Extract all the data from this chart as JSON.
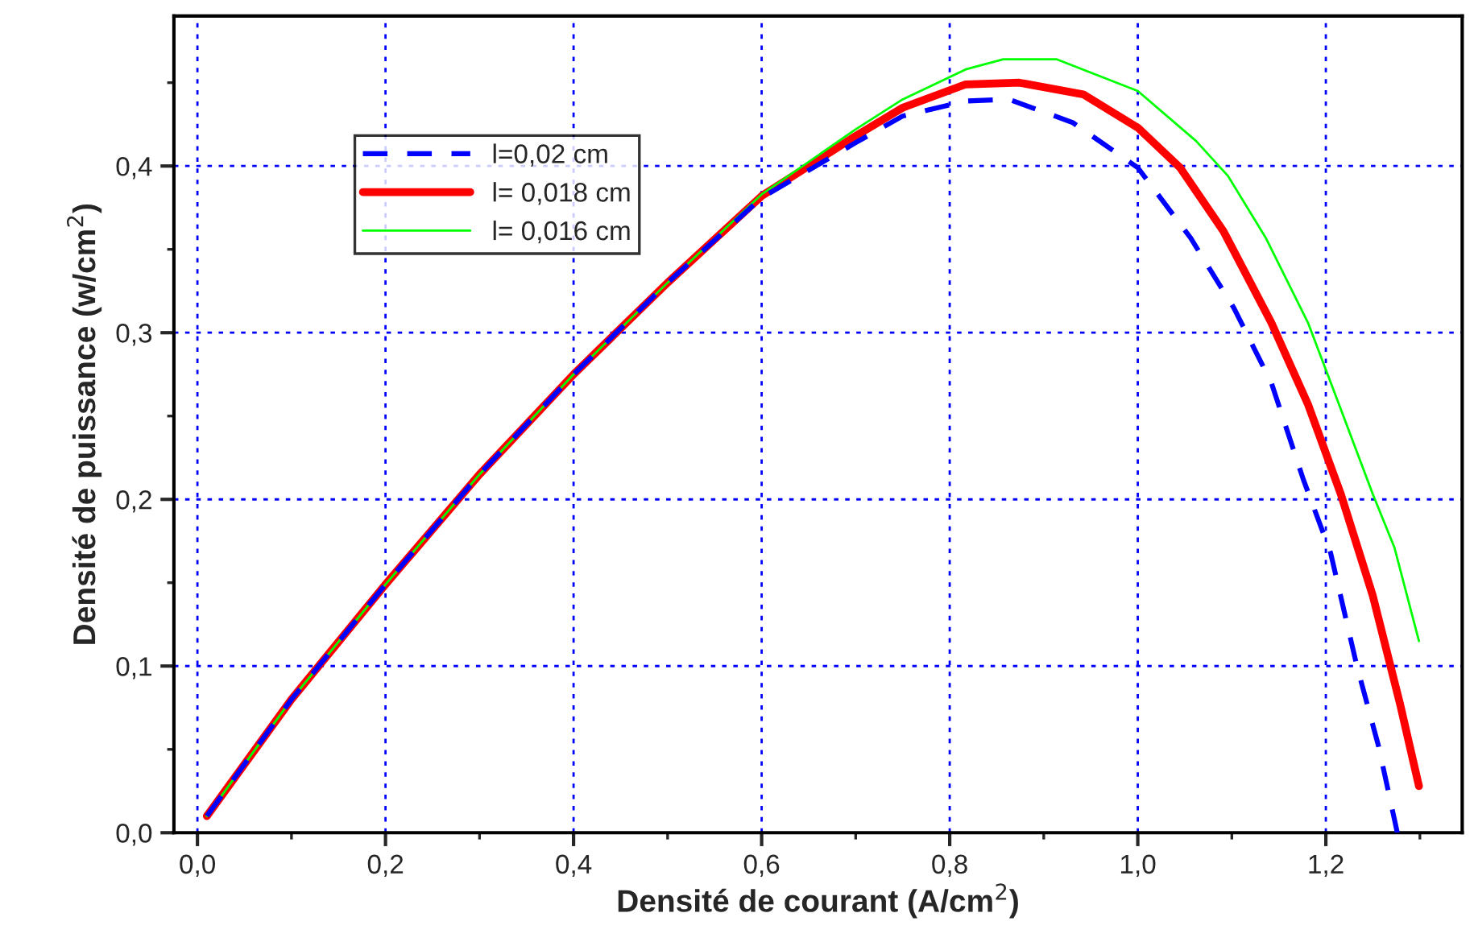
{
  "chart_data": {
    "type": "line",
    "xlabel": "Densité de courant (A/cm$^{2}$)",
    "ylabel": "Densité de puissance (w/cm$^{2}$)",
    "xlim": [
      -0.025,
      1.345
    ],
    "ylim": [
      0,
      0.49
    ],
    "xticks": [
      {
        "value": 0.0,
        "label": "0,0"
      },
      {
        "value": 0.1,
        "label": null
      },
      {
        "value": 0.2,
        "label": "0,2"
      },
      {
        "value": 0.3,
        "label": null
      },
      {
        "value": 0.4,
        "label": "0,4"
      },
      {
        "value": 0.5,
        "label": null
      },
      {
        "value": 0.6,
        "label": "0,6"
      },
      {
        "value": 0.7,
        "label": null
      },
      {
        "value": 0.8,
        "label": "0,8"
      },
      {
        "value": 0.9,
        "label": null
      },
      {
        "value": 1.0,
        "label": "1,0"
      },
      {
        "value": 1.1,
        "label": null
      },
      {
        "value": 1.2,
        "label": "1,2"
      },
      {
        "value": 1.3,
        "label": null
      }
    ],
    "yticks": [
      {
        "value": 0.0,
        "label": "0,0"
      },
      {
        "value": 0.05,
        "label": null
      },
      {
        "value": 0.1,
        "label": "0,1"
      },
      {
        "value": 0.15,
        "label": null
      },
      {
        "value": 0.2,
        "label": "0,2"
      },
      {
        "value": 0.25,
        "label": null
      },
      {
        "value": 0.3,
        "label": "0,3"
      },
      {
        "value": 0.35,
        "label": null
      },
      {
        "value": 0.4,
        "label": "0,4"
      },
      {
        "value": 0.45,
        "label": null
      }
    ],
    "grid": true,
    "legend": "top left",
    "marker": "none",
    "series": [
      {
        "name": "l=0,02 cm",
        "color": "#0000ff",
        "line_style": "dashed",
        "x": [
          0.01,
          0.1,
          0.2,
          0.3,
          0.4,
          0.5,
          0.6,
          0.7,
          0.75,
          0.817,
          0.863,
          0.931,
          1.0,
          1.056,
          1.102,
          1.142,
          1.176,
          1.205,
          1.233,
          1.256,
          1.276
        ],
        "values": [
          0.01,
          0.08,
          0.149,
          0.215,
          0.275,
          0.33,
          0.381,
          0.414,
          0.43,
          0.439,
          0.44,
          0.426,
          0.399,
          0.357,
          0.315,
          0.27,
          0.212,
          0.168,
          0.1,
          0.052,
          0.0
        ]
      },
      {
        "name": "l= 0,018 cm",
        "color": "#ff0000",
        "line_style": "solid",
        "x": [
          0.01,
          0.1,
          0.2,
          0.3,
          0.4,
          0.5,
          0.6,
          0.7,
          0.75,
          0.817,
          0.874,
          0.942,
          1.0,
          1.045,
          1.091,
          1.142,
          1.181,
          1.216,
          1.25,
          1.279,
          1.299
        ],
        "values": [
          0.01,
          0.08,
          0.149,
          0.215,
          0.275,
          0.33,
          0.382,
          0.418,
          0.435,
          0.449,
          0.45,
          0.443,
          0.423,
          0.399,
          0.361,
          0.306,
          0.257,
          0.203,
          0.142,
          0.077,
          0.028
        ]
      },
      {
        "name": "l= 0,016 cm",
        "color": "#00ff00",
        "line_style": "solid",
        "x": [
          0.01,
          0.1,
          0.2,
          0.3,
          0.4,
          0.5,
          0.6,
          0.7,
          0.75,
          0.817,
          0.857,
          0.914,
          1.0,
          1.062,
          1.096,
          1.136,
          1.181,
          1.216,
          1.25,
          1.273,
          1.299
        ],
        "values": [
          0.01,
          0.08,
          0.149,
          0.215,
          0.275,
          0.33,
          0.383,
          0.422,
          0.44,
          0.458,
          0.464,
          0.464,
          0.445,
          0.415,
          0.394,
          0.357,
          0.306,
          0.254,
          0.203,
          0.171,
          0.115
        ]
      }
    ]
  }
}
